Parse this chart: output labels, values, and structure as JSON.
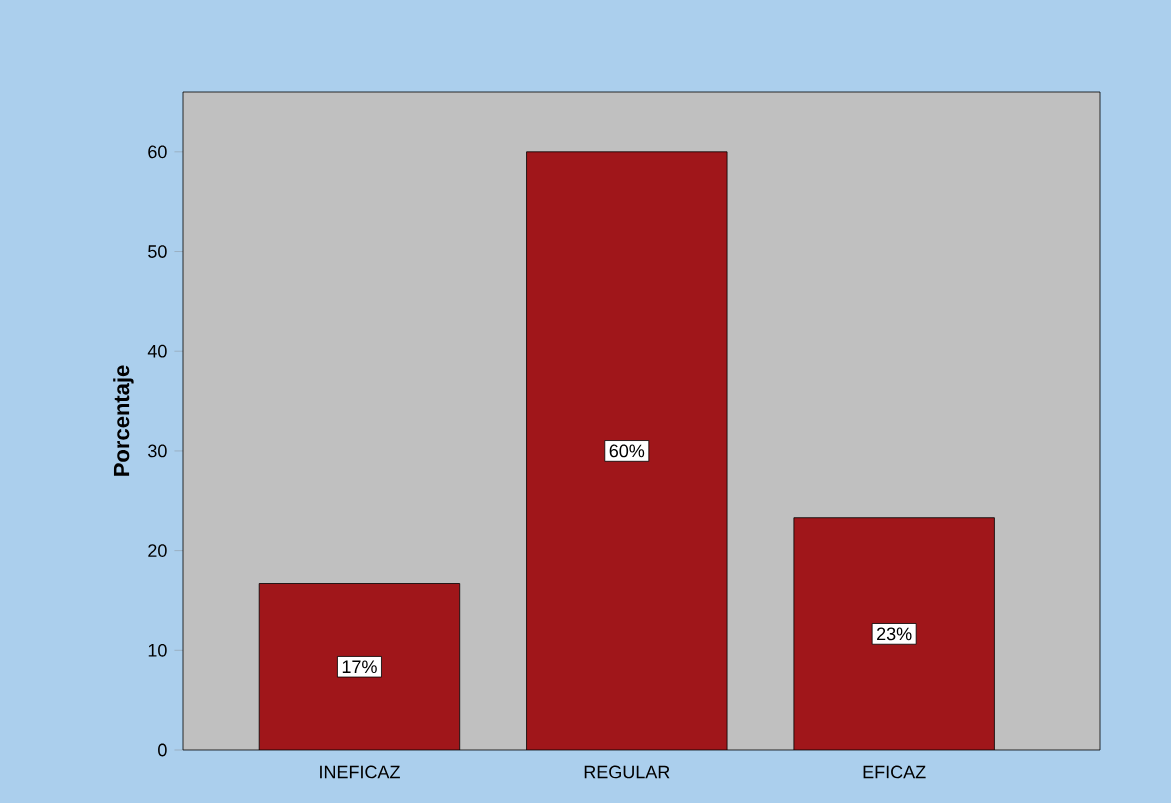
{
  "chart_data": {
    "type": "bar",
    "ylabel": "Porcentaje",
    "categories": [
      "INEFICAZ",
      "REGULAR",
      "EFICAZ"
    ],
    "values": [
      16.7,
      60,
      23.3
    ],
    "value_labels": [
      "17%",
      "60%",
      "23%"
    ],
    "color": "#a0161a",
    "ylim": [
      0,
      66
    ],
    "yticks": [
      0,
      10,
      20,
      30,
      40,
      50,
      60
    ],
    "grid": false
  }
}
